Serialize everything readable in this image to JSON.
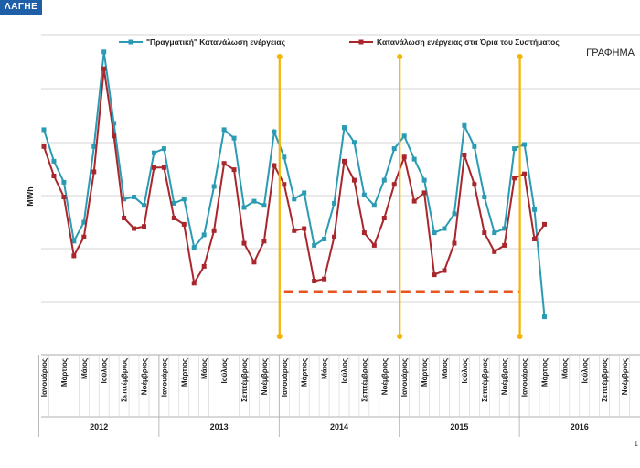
{
  "header": {
    "logo_text": "ΛΑΓΗΕ",
    "tag_text": "ΓΡΑΦΗΜΑ",
    "corner_mark": "1"
  },
  "chart_data": {
    "type": "line",
    "ylabel": "MWh",
    "xlabel": "",
    "title": "",
    "grid": true,
    "legend_position": "top",
    "month_labels": [
      "Ιανουάριος",
      "Μάρτιος",
      "Μάιος",
      "Ιούλιος",
      "Σεπτέμβριος",
      "Νοέμβριος"
    ],
    "years": [
      "2012",
      "2013",
      "2014",
      "2015",
      "2016"
    ],
    "series": [
      {
        "name": "\"Πραγματική\" Κατανάλωση ενέργειας",
        "color": "#2a9bb3",
        "values": [
          92,
          77,
          67,
          39,
          48,
          84,
          129,
          95,
          59,
          60,
          56,
          81,
          83,
          57,
          59,
          36,
          42,
          65,
          92,
          88,
          55,
          58,
          56,
          91,
          79,
          59,
          62,
          37,
          40,
          57,
          93,
          86,
          61,
          56,
          68,
          83,
          89,
          78,
          68,
          43,
          45,
          52,
          94,
          84,
          60,
          43,
          45,
          83,
          85,
          54,
          3
        ]
      },
      {
        "name": "Κατανάλωση ενέργειας στα Όρια του Συστήματος",
        "color": "#a8262c",
        "values": [
          84,
          70,
          60,
          32,
          41,
          72,
          121,
          89,
          50,
          45,
          46,
          74,
          74,
          50,
          47,
          19,
          27,
          44,
          76,
          73,
          38,
          29,
          39,
          75,
          66,
          44,
          45,
          20,
          21,
          41,
          77,
          68,
          43,
          37,
          50,
          66,
          79,
          58,
          62,
          23,
          25,
          38,
          80,
          66,
          43,
          34,
          37,
          69,
          71,
          40,
          47
        ]
      }
    ],
    "vertical_markers_after_month": [
      24,
      36,
      48
    ],
    "threshold_line": {
      "value": 15,
      "from_month": 24,
      "to_month": 48
    }
  }
}
